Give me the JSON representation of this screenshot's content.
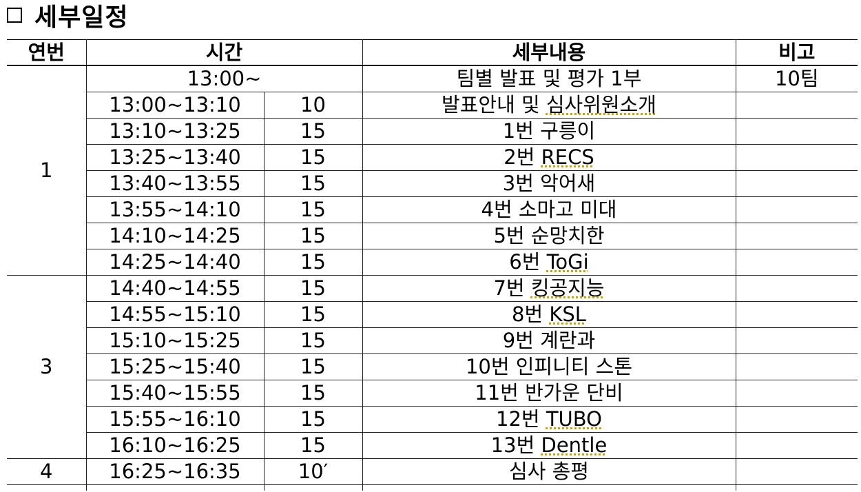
{
  "title": "세부일정",
  "headers": {
    "no": "연번",
    "time": "시간",
    "content": "세부내용",
    "note": "비고"
  },
  "top_row": {
    "time": "13:00~",
    "content": "팀별 발표 및 평가 1부",
    "note": "10팀"
  },
  "groups": [
    {
      "no": "1",
      "rows": [
        {
          "time": "13:00~13:10",
          "dur": "10",
          "content": "발표안내 및 심사위원소개"
        },
        {
          "time": "13:10~13:25",
          "dur": "15",
          "content": "1번 구릉이"
        },
        {
          "time": "13:25~13:40",
          "dur": "15",
          "content": "2번 RECS"
        },
        {
          "time": "13:40~13:55",
          "dur": "15",
          "content": "3번 악어새"
        },
        {
          "time": "13:55~14:10",
          "dur": "15",
          "content": "4번 소마고 미대"
        },
        {
          "time": "14:10~14:25",
          "dur": "15",
          "content": "5번 순망치한"
        },
        {
          "time": "14:25~14:40",
          "dur": "15",
          "content": "6번 ToGi"
        }
      ]
    },
    {
      "no": "3",
      "rows": [
        {
          "time": "14:40~14:55",
          "dur": "15",
          "content": "7번 킹공지능"
        },
        {
          "time": "14:55~15:10",
          "dur": "15",
          "content": "8번 KSL"
        },
        {
          "time": "15:10~15:25",
          "dur": "15",
          "content": "9번 계란과"
        },
        {
          "time": "15:25~15:40",
          "dur": "15",
          "content": "10번 인피니티 스톤"
        },
        {
          "time": "15:40~15:55",
          "dur": "15",
          "content": "11번 반가운 단비"
        },
        {
          "time": "15:55~16:10",
          "dur": "15",
          "content": "12번 TUBO"
        },
        {
          "time": "16:10~16:25",
          "dur": "15",
          "content": "13번 Dentle"
        }
      ]
    },
    {
      "no": "4",
      "rows": [
        {
          "time": "16:25~16:35",
          "dur": "10′",
          "content": "심사 총평"
        }
      ]
    }
  ]
}
